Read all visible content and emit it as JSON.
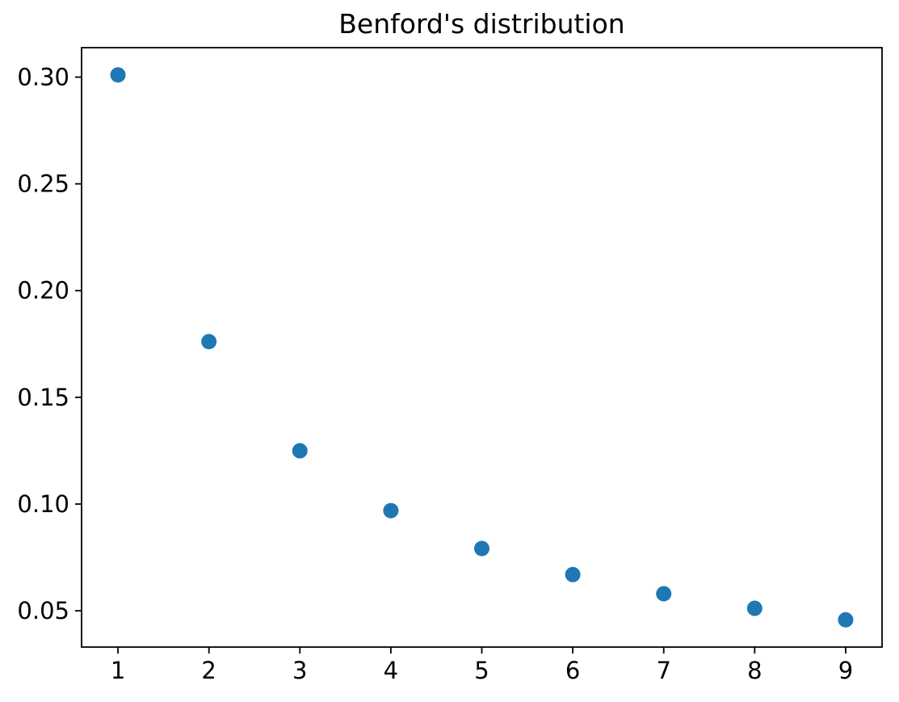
{
  "figure": {
    "background": "#ffffff",
    "text_color": "#000000",
    "spine_color": "#000000"
  },
  "chart_data": {
    "type": "scatter",
    "title": "Benford's distribution",
    "xlabel": "",
    "ylabel": "",
    "x": [
      1,
      2,
      3,
      4,
      5,
      6,
      7,
      8,
      9
    ],
    "y": [
      0.30103,
      0.17609,
      0.12494,
      0.09691,
      0.07918,
      0.06695,
      0.05799,
      0.05115,
      0.04576
    ],
    "xlim": [
      0.6,
      9.4
    ],
    "ylim": [
      0.033,
      0.3138
    ],
    "xticks": [
      1,
      2,
      3,
      4,
      5,
      6,
      7,
      8,
      9
    ],
    "xtick_labels": [
      "1",
      "2",
      "3",
      "4",
      "5",
      "6",
      "7",
      "8",
      "9"
    ],
    "yticks": [
      0.05,
      0.1,
      0.15,
      0.2,
      0.25,
      0.3
    ],
    "ytick_labels": [
      "0.05",
      "0.10",
      "0.15",
      "0.20",
      "0.25",
      "0.30"
    ],
    "marker_color": "#1f77b4",
    "marker_radius": 9.5,
    "grid": false,
    "legend": null
  }
}
